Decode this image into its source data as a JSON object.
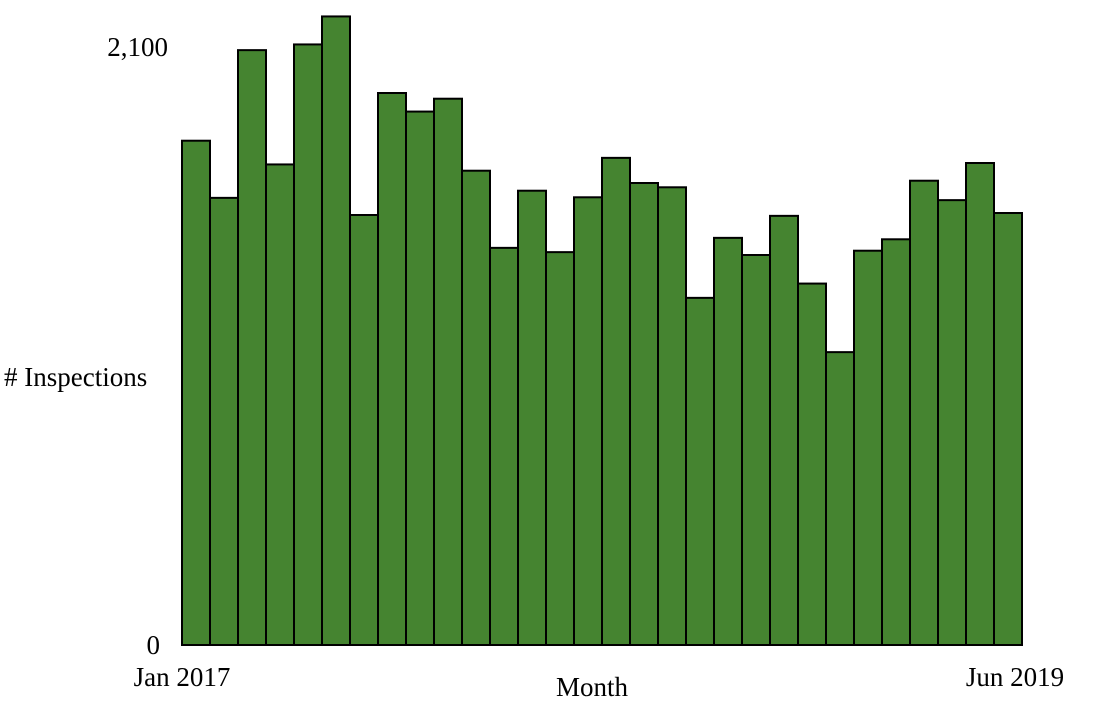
{
  "chart_data": {
    "type": "bar",
    "title": "",
    "xlabel": "Month",
    "ylabel": "# Inspections",
    "ylim": [
      0,
      2100
    ],
    "y_ticks": [
      "2,100",
      "0"
    ],
    "x_tick_labels": [
      "Jan 2017",
      "Jun 2019"
    ],
    "grid": false,
    "bar_color": "#458430",
    "categories": [
      "Jan 2017",
      "Feb 2017",
      "Mar 2017",
      "Apr 2017",
      "May 2017",
      "Jun 2017",
      "Jul 2017",
      "Aug 2017",
      "Sep 2017",
      "Oct 2017",
      "Nov 2017",
      "Dec 2017",
      "Jan 2018",
      "Feb 2018",
      "Mar 2018",
      "Apr 2018",
      "May 2018",
      "Jun 2018",
      "Jul 2018",
      "Aug 2018",
      "Sep 2018",
      "Oct 2018",
      "Nov 2018",
      "Dec 2018",
      "Jan 2019",
      "Feb 2019",
      "Mar 2019",
      "Apr 2019",
      "May 2019",
      "Jun 2019"
    ],
    "values": [
      1765,
      1565,
      2082,
      1682,
      2102,
      2200,
      1505,
      1932,
      1867,
      1912,
      1660,
      1390,
      1590,
      1375,
      1567,
      1705,
      1617,
      1602,
      1215,
      1425,
      1365,
      1502,
      1265,
      1025,
      1380,
      1420,
      1625,
      1557,
      1687,
      1512
    ]
  }
}
